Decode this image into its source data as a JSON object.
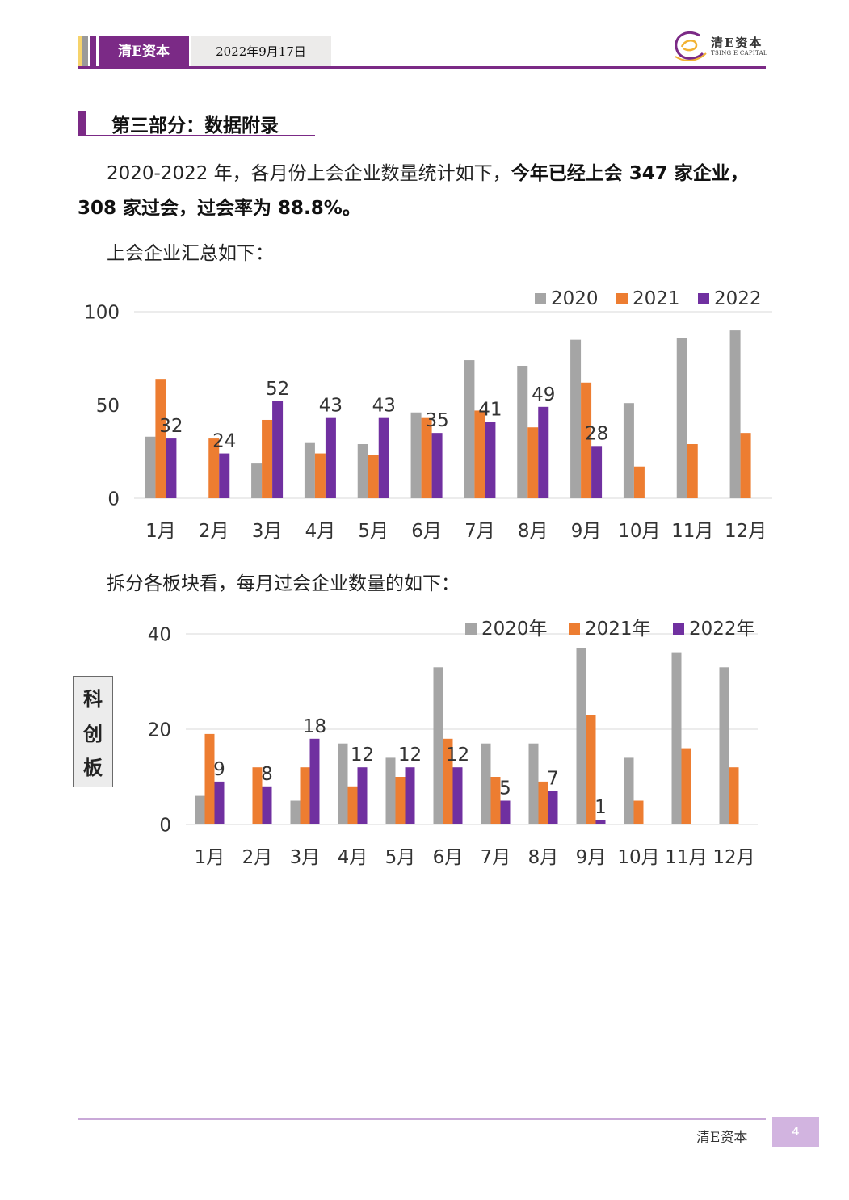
{
  "header": {
    "brand": "清E资本",
    "date": "2022年9月17日",
    "logo_cn": "清E资本",
    "logo_en": "TSING E CAPITAL"
  },
  "section": {
    "title": "第三部分：数据附录"
  },
  "paragraphs": {
    "intro_a": "2020-2022 年，各月份上会企业数量统计如下，",
    "intro_b": "今年已经上会 347 家企业，",
    "intro_c": "308 家过会，过会率为 88.8%。",
    "summary_label": "上会企业汇总如下：",
    "split_label": "拆分各板块看，每月过会企业数量的如下："
  },
  "kcb_label": [
    "科",
    "创",
    "板"
  ],
  "colors": {
    "s2020": "#a5a5a5",
    "s2021": "#ed7d31",
    "s2022": "#7030a0",
    "brand": "#7b2a86"
  },
  "chart_data": [
    {
      "type": "bar",
      "categories": [
        "1月",
        "2月",
        "3月",
        "4月",
        "5月",
        "6月",
        "7月",
        "8月",
        "9月",
        "10月",
        "11月",
        "12月"
      ],
      "series": [
        {
          "name": "2020",
          "values": [
            33,
            0,
            19,
            30,
            29,
            46,
            74,
            71,
            85,
            51,
            86,
            90
          ]
        },
        {
          "name": "2021",
          "values": [
            64,
            32,
            42,
            24,
            23,
            43,
            47,
            38,
            62,
            17,
            29,
            35
          ]
        },
        {
          "name": "2022",
          "values": [
            32,
            24,
            52,
            43,
            43,
            35,
            41,
            49,
            28,
            null,
            null,
            null
          ]
        }
      ],
      "data_labels_series": "2022",
      "yticks": [
        "0",
        "50",
        "100"
      ],
      "ylim": [
        0,
        100
      ],
      "legend": "top-right",
      "grid": true
    },
    {
      "type": "bar",
      "categories": [
        "1月",
        "2月",
        "3月",
        "4月",
        "5月",
        "6月",
        "7月",
        "8月",
        "9月",
        "10月",
        "11月",
        "12月"
      ],
      "series": [
        {
          "name": "2020年",
          "values": [
            6,
            0,
            5,
            17,
            14,
            33,
            17,
            17,
            37,
            14,
            36,
            33
          ]
        },
        {
          "name": "2021年",
          "values": [
            19,
            12,
            12,
            8,
            10,
            18,
            10,
            9,
            23,
            5,
            16,
            12
          ]
        },
        {
          "name": "2022年",
          "values": [
            9,
            8,
            18,
            12,
            12,
            12,
            5,
            7,
            1,
            null,
            null,
            null
          ]
        }
      ],
      "data_labels_series": "2022年",
      "yticks": [
        "0",
        "20",
        "40"
      ],
      "ylim": [
        0,
        40
      ],
      "legend": "top-right",
      "grid": true
    }
  ]
}
